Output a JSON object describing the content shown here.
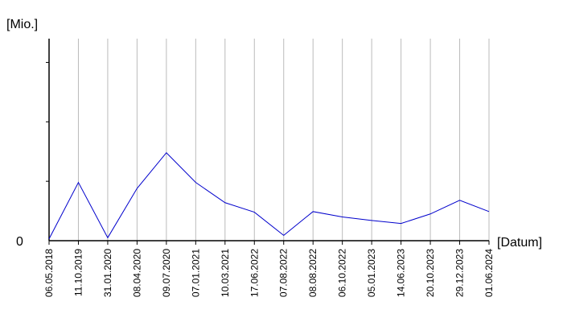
{
  "chart_data": {
    "type": "line",
    "ylabel": "[Mio.]",
    "xlabel": "[Datum]",
    "y_tick_label": "0",
    "grid": "vertical",
    "line_color": "#0000cc",
    "grid_color": "#bbbbbb",
    "categories": [
      "06.05.2018",
      "11.10.2019",
      "31.01.2020",
      "08.04.2020",
      "09.07.2020",
      "07.01.2021",
      "10.03.2021",
      "17.06.2022",
      "07.08.2022",
      "08.08.2022",
      "06.10.2022",
      "05.01.2023",
      "14.06.2023",
      "20.10.2023",
      "29.12.2023",
      "01.06.2024"
    ],
    "values": [
      0.3,
      9.8,
      0.5,
      8.8,
      14.8,
      9.8,
      6.4,
      4.8,
      0.9,
      4.9,
      4.0,
      3.4,
      2.9,
      4.5,
      6.8,
      4.9
    ],
    "ylim": [
      0,
      34
    ]
  }
}
